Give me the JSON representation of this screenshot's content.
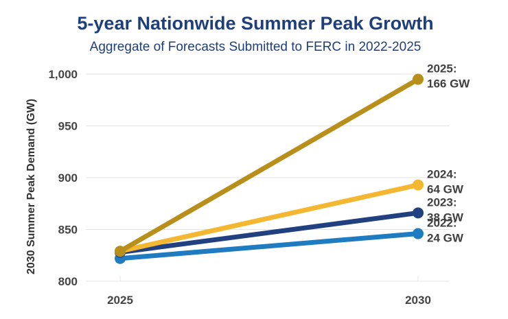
{
  "chart_data": {
    "type": "line",
    "title": "5-year Nationwide Summer Peak Growth",
    "subtitle": "Aggregate of Forecasts Submitted to FERC in 2022-2025",
    "xlabel": "",
    "ylabel": "2030 Summer Peak Demand (GW)",
    "ylim": [
      800,
      1000
    ],
    "yticks": [
      800,
      850,
      900,
      950,
      1000
    ],
    "ytick_labels": [
      "800",
      "850",
      "900",
      "950",
      "1,000"
    ],
    "categories": [
      "2025",
      "2030"
    ],
    "grid": true,
    "series": [
      {
        "name": "2022",
        "values": [
          822,
          846
        ],
        "color": "#1f7cc1",
        "label_year": "2022:",
        "label_growth": "24 GW"
      },
      {
        "name": "2023",
        "values": [
          828,
          866
        ],
        "color": "#21407f",
        "label_year": "2023:",
        "label_growth": "38 GW"
      },
      {
        "name": "2024",
        "values": [
          829,
          893
        ],
        "color": "#f4b731",
        "label_year": "2024:",
        "label_growth": "64 GW"
      },
      {
        "name": "2025",
        "values": [
          829,
          995
        ],
        "color": "#b88f1a",
        "label_year": "2025:",
        "label_growth": "166 GW"
      }
    ]
  }
}
